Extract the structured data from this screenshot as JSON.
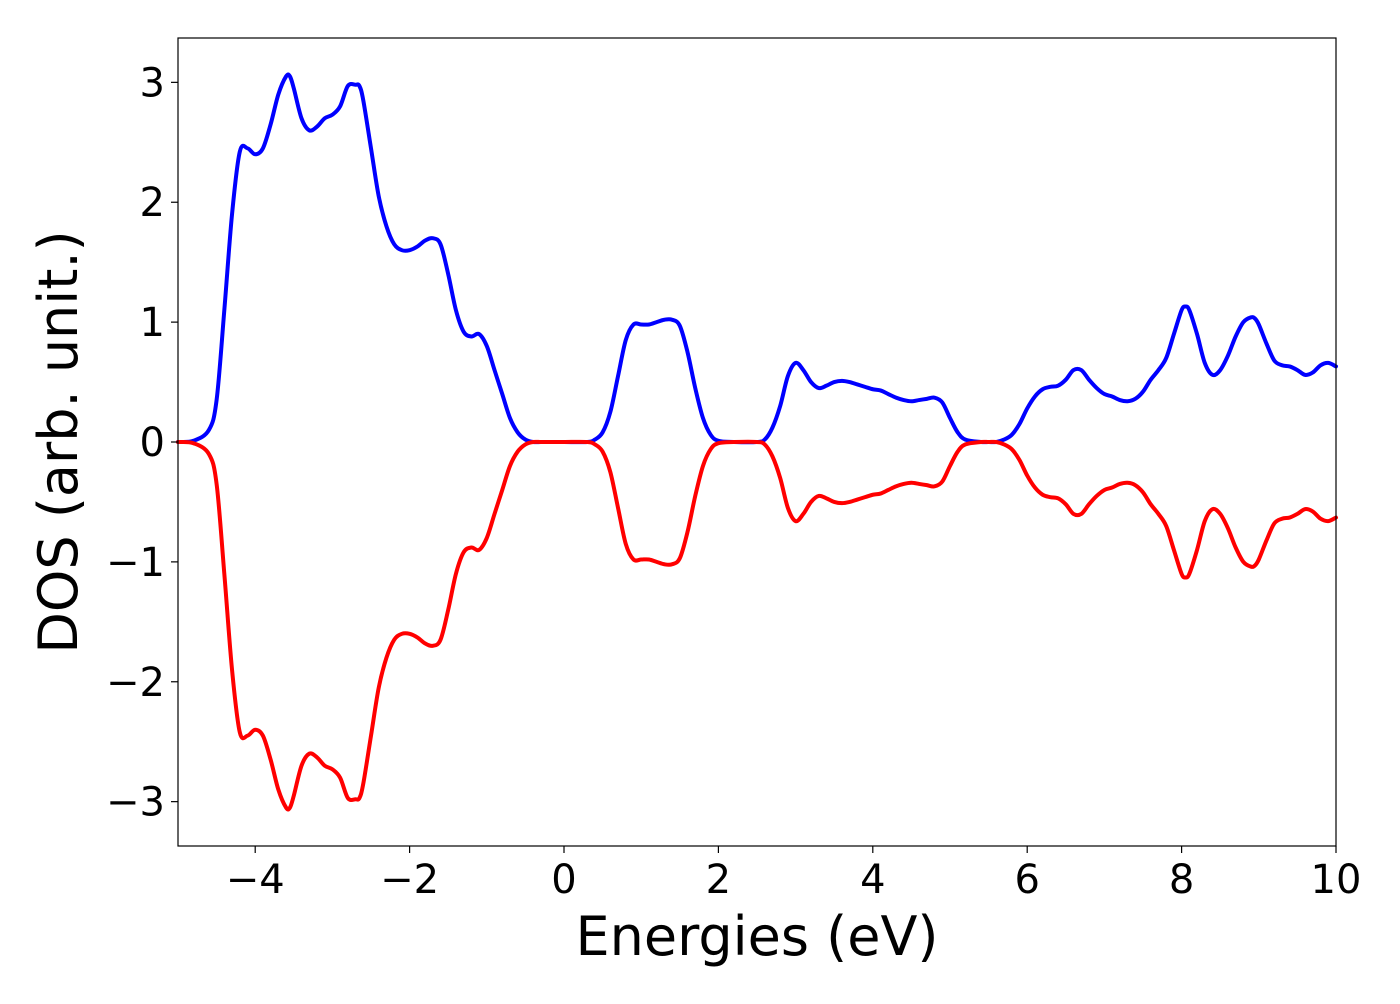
{
  "chart_data": {
    "type": "line",
    "title": "",
    "xlabel": "Energies (eV)",
    "ylabel": "DOS (arb. unit.)",
    "xlim": [
      -5,
      10
    ],
    "ylim": [
      -3.37,
      3.37
    ],
    "grid": false,
    "legend": "none",
    "x_ticks": [
      -4,
      -2,
      0,
      2,
      4,
      6,
      8,
      10
    ],
    "x_tick_labels": [
      "−4",
      "−2",
      "0",
      "2",
      "4",
      "6",
      "8",
      "10"
    ],
    "y_ticks": [
      3,
      2,
      1,
      0,
      -1,
      -2,
      -3
    ],
    "y_tick_labels": [
      "3",
      "2",
      "1",
      "0",
      "−1",
      "−2",
      "−3"
    ],
    "series": [
      {
        "color": "#0000ff",
        "x": [
          -5.0,
          -4.8,
          -4.6,
          -4.5,
          -4.4,
          -4.3,
          -4.2,
          -4.1,
          -4.0,
          -3.9,
          -3.8,
          -3.7,
          -3.6,
          -3.55,
          -3.5,
          -3.4,
          -3.3,
          -3.2,
          -3.1,
          -3.0,
          -2.9,
          -2.8,
          -2.7,
          -2.65,
          -2.6,
          -2.5,
          -2.4,
          -2.3,
          -2.2,
          -2.1,
          -2.0,
          -1.9,
          -1.8,
          -1.7,
          -1.6,
          -1.5,
          -1.4,
          -1.3,
          -1.2,
          -1.1,
          -1.0,
          -0.9,
          -0.8,
          -0.7,
          -0.6,
          -0.5,
          -0.4,
          -0.3,
          -0.2,
          0.0,
          0.3,
          0.4,
          0.5,
          0.6,
          0.7,
          0.8,
          0.9,
          1.0,
          1.1,
          1.2,
          1.3,
          1.4,
          1.5,
          1.6,
          1.7,
          1.8,
          1.9,
          2.0,
          2.2,
          2.5,
          2.6,
          2.7,
          2.8,
          2.9,
          3.0,
          3.1,
          3.2,
          3.3,
          3.4,
          3.5,
          3.6,
          3.7,
          3.8,
          3.9,
          4.0,
          4.1,
          4.2,
          4.3,
          4.4,
          4.5,
          4.6,
          4.7,
          4.8,
          4.9,
          5.0,
          5.1,
          5.2,
          5.4,
          5.5,
          5.6,
          5.7,
          5.8,
          5.9,
          6.0,
          6.1,
          6.2,
          6.3,
          6.4,
          6.5,
          6.6,
          6.7,
          6.8,
          6.9,
          7.0,
          7.1,
          7.2,
          7.3,
          7.4,
          7.5,
          7.6,
          7.7,
          7.8,
          7.9,
          8.0,
          8.05,
          8.1,
          8.2,
          8.3,
          8.4,
          8.5,
          8.6,
          8.7,
          8.8,
          8.9,
          8.95,
          9.0,
          9.1,
          9.2,
          9.3,
          9.4,
          9.5,
          9.6,
          9.7,
          9.8,
          9.9,
          10.0
        ],
        "y": [
          0.0,
          0.01,
          0.1,
          0.35,
          1.1,
          1.9,
          2.42,
          2.45,
          2.4,
          2.45,
          2.65,
          2.9,
          3.05,
          3.05,
          2.95,
          2.7,
          2.6,
          2.63,
          2.7,
          2.73,
          2.8,
          2.97,
          2.98,
          2.97,
          2.85,
          2.45,
          2.05,
          1.8,
          1.65,
          1.6,
          1.6,
          1.63,
          1.68,
          1.7,
          1.65,
          1.4,
          1.1,
          0.92,
          0.88,
          0.9,
          0.8,
          0.6,
          0.4,
          0.2,
          0.08,
          0.02,
          0.0,
          0.0,
          0.0,
          0.0,
          0.0,
          0.02,
          0.08,
          0.25,
          0.55,
          0.85,
          0.98,
          0.98,
          0.98,
          1.0,
          1.02,
          1.02,
          0.97,
          0.75,
          0.45,
          0.2,
          0.06,
          0.01,
          0.0,
          0.0,
          0.02,
          0.12,
          0.3,
          0.55,
          0.66,
          0.6,
          0.5,
          0.45,
          0.47,
          0.5,
          0.51,
          0.5,
          0.48,
          0.46,
          0.44,
          0.43,
          0.4,
          0.37,
          0.35,
          0.34,
          0.35,
          0.36,
          0.37,
          0.33,
          0.2,
          0.08,
          0.02,
          0.0,
          0.0,
          0.0,
          0.02,
          0.06,
          0.15,
          0.28,
          0.38,
          0.44,
          0.46,
          0.47,
          0.52,
          0.6,
          0.6,
          0.52,
          0.45,
          0.4,
          0.38,
          0.35,
          0.34,
          0.36,
          0.42,
          0.52,
          0.6,
          0.7,
          0.9,
          1.1,
          1.13,
          1.1,
          0.9,
          0.66,
          0.56,
          0.6,
          0.72,
          0.88,
          1.0,
          1.04,
          1.03,
          0.98,
          0.82,
          0.68,
          0.64,
          0.63,
          0.6,
          0.56,
          0.58,
          0.64,
          0.66,
          0.63
        ]
      },
      {
        "color": "#ff0000",
        "x": [
          -5.0,
          -4.8,
          -4.6,
          -4.5,
          -4.4,
          -4.3,
          -4.2,
          -4.1,
          -4.0,
          -3.9,
          -3.8,
          -3.7,
          -3.6,
          -3.55,
          -3.5,
          -3.4,
          -3.3,
          -3.2,
          -3.1,
          -3.0,
          -2.9,
          -2.8,
          -2.7,
          -2.65,
          -2.6,
          -2.5,
          -2.4,
          -2.3,
          -2.2,
          -2.1,
          -2.0,
          -1.9,
          -1.8,
          -1.7,
          -1.6,
          -1.5,
          -1.4,
          -1.3,
          -1.2,
          -1.1,
          -1.0,
          -0.9,
          -0.8,
          -0.7,
          -0.6,
          -0.5,
          -0.4,
          -0.3,
          -0.2,
          0.0,
          0.3,
          0.4,
          0.5,
          0.6,
          0.7,
          0.8,
          0.9,
          1.0,
          1.1,
          1.2,
          1.3,
          1.4,
          1.5,
          1.6,
          1.7,
          1.8,
          1.9,
          2.0,
          2.2,
          2.5,
          2.6,
          2.7,
          2.8,
          2.9,
          3.0,
          3.1,
          3.2,
          3.3,
          3.4,
          3.5,
          3.6,
          3.7,
          3.8,
          3.9,
          4.0,
          4.1,
          4.2,
          4.3,
          4.4,
          4.5,
          4.6,
          4.7,
          4.8,
          4.9,
          5.0,
          5.1,
          5.2,
          5.4,
          5.5,
          5.6,
          5.7,
          5.8,
          5.9,
          6.0,
          6.1,
          6.2,
          6.3,
          6.4,
          6.5,
          6.6,
          6.7,
          6.8,
          6.9,
          7.0,
          7.1,
          7.2,
          7.3,
          7.4,
          7.5,
          7.6,
          7.7,
          7.8,
          7.9,
          8.0,
          8.05,
          8.1,
          8.2,
          8.3,
          8.4,
          8.5,
          8.6,
          8.7,
          8.8,
          8.9,
          8.95,
          9.0,
          9.1,
          9.2,
          9.3,
          9.4,
          9.5,
          9.6,
          9.7,
          9.8,
          9.9,
          10.0
        ],
        "y": [
          0.0,
          -0.01,
          -0.1,
          -0.35,
          -1.1,
          -1.9,
          -2.42,
          -2.45,
          -2.4,
          -2.45,
          -2.65,
          -2.9,
          -3.05,
          -3.05,
          -2.95,
          -2.7,
          -2.6,
          -2.63,
          -2.7,
          -2.73,
          -2.8,
          -2.97,
          -2.98,
          -2.97,
          -2.85,
          -2.45,
          -2.05,
          -1.8,
          -1.65,
          -1.6,
          -1.6,
          -1.63,
          -1.68,
          -1.7,
          -1.65,
          -1.4,
          -1.1,
          -0.92,
          -0.88,
          -0.9,
          -0.8,
          -0.6,
          -0.4,
          -0.2,
          -0.08,
          -0.02,
          0.0,
          0.0,
          0.0,
          0.0,
          0.0,
          -0.02,
          -0.08,
          -0.25,
          -0.55,
          -0.85,
          -0.98,
          -0.98,
          -0.98,
          -1.0,
          -1.02,
          -1.02,
          -0.97,
          -0.75,
          -0.45,
          -0.2,
          -0.06,
          -0.01,
          0.0,
          0.0,
          -0.02,
          -0.12,
          -0.3,
          -0.55,
          -0.66,
          -0.6,
          -0.5,
          -0.45,
          -0.47,
          -0.5,
          -0.51,
          -0.5,
          -0.48,
          -0.46,
          -0.44,
          -0.43,
          -0.4,
          -0.37,
          -0.35,
          -0.34,
          -0.35,
          -0.36,
          -0.37,
          -0.33,
          -0.2,
          -0.08,
          -0.02,
          0.0,
          0.0,
          0.0,
          -0.02,
          -0.06,
          -0.15,
          -0.28,
          -0.38,
          -0.44,
          -0.46,
          -0.47,
          -0.52,
          -0.6,
          -0.6,
          -0.52,
          -0.45,
          -0.4,
          -0.38,
          -0.35,
          -0.34,
          -0.36,
          -0.42,
          -0.52,
          -0.6,
          -0.7,
          -0.9,
          -1.1,
          -1.13,
          -1.1,
          -0.9,
          -0.66,
          -0.56,
          -0.6,
          -0.72,
          -0.88,
          -1.0,
          -1.04,
          -1.03,
          -0.98,
          -0.82,
          -0.68,
          -0.64,
          -0.63,
          -0.6,
          -0.56,
          -0.58,
          -0.64,
          -0.66,
          -0.63
        ]
      }
    ]
  }
}
